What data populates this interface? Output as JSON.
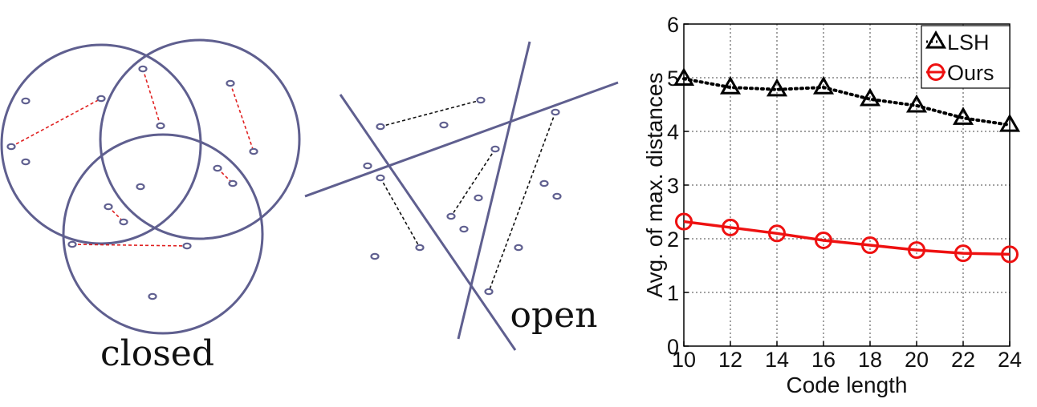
{
  "left_panel": {
    "label": "closed",
    "circle_color": "#5f5f8f",
    "pair_color": "#e02020",
    "points": [
      [
        32,
        126
      ],
      [
        14,
        183
      ],
      [
        32,
        202
      ],
      [
        126,
        123
      ],
      [
        178,
        86
      ],
      [
        200,
        157
      ],
      [
        287,
        104
      ],
      [
        316,
        189
      ],
      [
        271,
        210
      ],
      [
        290,
        229
      ],
      [
        175,
        233
      ],
      [
        135,
        258
      ],
      [
        154,
        277
      ],
      [
        90,
        305
      ],
      [
        233,
        307
      ],
      [
        190,
        370
      ]
    ],
    "pairs": [
      [
        [
          14,
          183
        ],
        [
          126,
          123
        ]
      ],
      [
        [
          178,
          86
        ],
        [
          200,
          157
        ]
      ],
      [
        [
          287,
          104
        ],
        [
          316,
          189
        ]
      ],
      [
        [
          271,
          210
        ],
        [
          290,
          229
        ]
      ],
      [
        [
          135,
          258
        ],
        [
          154,
          277
        ]
      ],
      [
        [
          90,
          305
        ],
        [
          233,
          307
        ]
      ]
    ]
  },
  "middle_panel": {
    "label": "open",
    "line_color": "#5f5f8f",
    "pair_color": "#111111",
    "points": [
      [
        474,
        158
      ],
      [
        599,
        125
      ],
      [
        553,
        156
      ],
      [
        458,
        207
      ],
      [
        474,
        222
      ],
      [
        523,
        309
      ],
      [
        467,
        320
      ],
      [
        617,
        186
      ],
      [
        692,
        140
      ],
      [
        562,
        270
      ],
      [
        596,
        247
      ],
      [
        578,
        286
      ],
      [
        678,
        229
      ],
      [
        694,
        245
      ],
      [
        646,
        309
      ],
      [
        609,
        364
      ]
    ],
    "pairs": [
      [
        [
          474,
          158
        ],
        [
          599,
          125
        ]
      ],
      [
        [
          474,
          222
        ],
        [
          523,
          309
        ]
      ],
      [
        [
          617,
          186
        ],
        [
          562,
          270
        ]
      ],
      [
        [
          692,
          140
        ],
        [
          609,
          364
        ]
      ]
    ]
  },
  "chart_data": {
    "type": "line",
    "title": "",
    "xlabel": "Code length",
    "ylabel": "Avg. of max. distances",
    "xlim": [
      10,
      24
    ],
    "ylim": [
      0,
      6
    ],
    "xticks": [
      10,
      12,
      14,
      16,
      18,
      20,
      22,
      24
    ],
    "yticks": [
      0,
      1,
      2,
      3,
      4,
      5,
      6
    ],
    "grid": true,
    "legend_position": "top-right",
    "x": [
      10,
      12,
      14,
      16,
      18,
      20,
      22,
      24
    ],
    "series": [
      {
        "name": "LSH",
        "values": [
          4.98,
          4.82,
          4.78,
          4.82,
          4.6,
          4.48,
          4.25,
          4.12
        ],
        "color": "#000000",
        "marker": "triangle",
        "line_style": "dotted"
      },
      {
        "name": "Ours",
        "values": [
          2.32,
          2.21,
          2.1,
          1.97,
          1.88,
          1.79,
          1.73,
          1.71
        ],
        "color": "#ee1111",
        "marker": "circle",
        "line_style": "solid"
      }
    ]
  }
}
